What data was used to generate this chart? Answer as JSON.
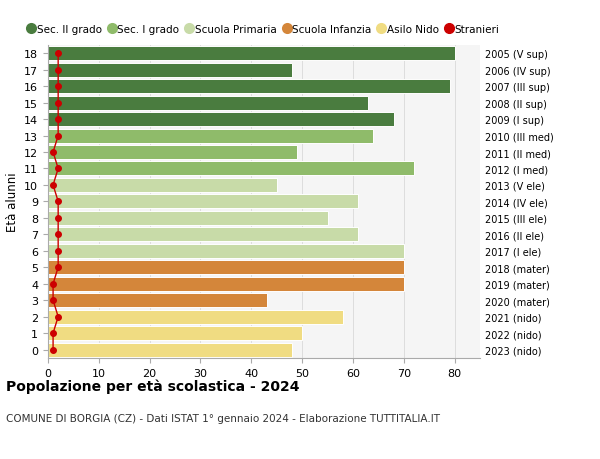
{
  "ages": [
    0,
    1,
    2,
    3,
    4,
    5,
    6,
    7,
    8,
    9,
    10,
    11,
    12,
    13,
    14,
    15,
    16,
    17,
    18
  ],
  "right_labels": [
    "2023 (nido)",
    "2022 (nido)",
    "2021 (nido)",
    "2020 (mater)",
    "2019 (mater)",
    "2018 (mater)",
    "2017 (I ele)",
    "2016 (II ele)",
    "2015 (III ele)",
    "2014 (IV ele)",
    "2013 (V ele)",
    "2012 (I med)",
    "2011 (II med)",
    "2010 (III med)",
    "2009 (I sup)",
    "2008 (II sup)",
    "2007 (III sup)",
    "2006 (IV sup)",
    "2005 (V sup)"
  ],
  "bar_values": [
    48,
    50,
    58,
    43,
    70,
    70,
    70,
    61,
    55,
    61,
    45,
    72,
    49,
    64,
    68,
    63,
    79,
    48,
    80
  ],
  "stranieri_values": [
    1,
    1,
    2,
    1,
    1,
    2,
    2,
    2,
    2,
    2,
    1,
    2,
    1,
    2,
    2,
    2,
    2,
    2,
    2
  ],
  "bar_colors": [
    "#f0dc82",
    "#f0dc82",
    "#f0dc82",
    "#d4863a",
    "#d4863a",
    "#d4863a",
    "#c8dba8",
    "#c8dba8",
    "#c8dba8",
    "#c8dba8",
    "#c8dba8",
    "#8fbb6a",
    "#8fbb6a",
    "#8fbb6a",
    "#4a7c3f",
    "#4a7c3f",
    "#4a7c3f",
    "#4a7c3f",
    "#4a7c3f"
  ],
  "legend_labels": [
    "Sec. II grado",
    "Sec. I grado",
    "Scuola Primaria",
    "Scuola Infanzia",
    "Asilo Nido",
    "Stranieri"
  ],
  "legend_colors": [
    "#4a7c3f",
    "#8fbb6a",
    "#c8dba8",
    "#d4863a",
    "#f0dc82",
    "#cc0000"
  ],
  "title": "Popolazione per età scolastica - 2024",
  "subtitle": "COMUNE DI BORGIA (CZ) - Dati ISTAT 1° gennaio 2024 - Elaborazione TUTTITALIA.IT",
  "ylabel": "Età alunni",
  "xlim": [
    0,
    85
  ],
  "xticks": [
    0,
    10,
    20,
    30,
    40,
    50,
    60,
    70,
    80
  ],
  "stranieri_color": "#cc0000",
  "stranieri_markersize": 4,
  "bar_height": 0.85,
  "background_color": "#ffffff",
  "plot_bg_color": "#f5f5f5",
  "grid_color": "#dddddd"
}
